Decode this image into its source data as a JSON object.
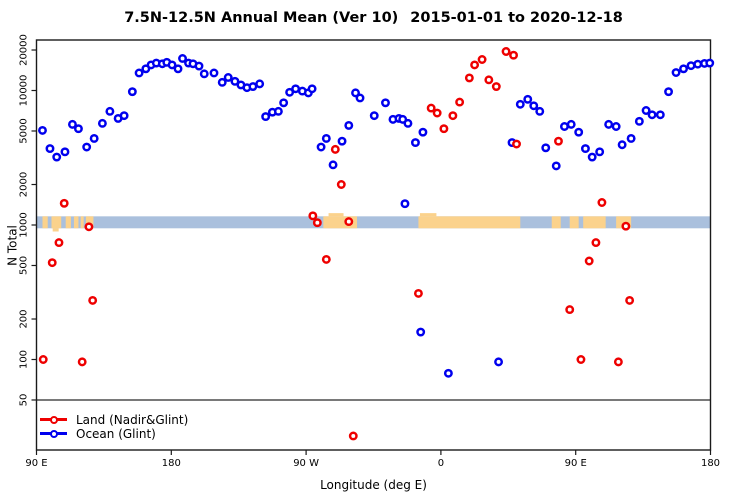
{
  "header": {
    "title_left": "7.5N-12.5N Annual Mean (Ver 10)",
    "title_right": "2015-01-01 to 2020-12-18"
  },
  "chart_data": {
    "type": "scatter",
    "title": "7.5N-12.5N Annual Mean (Ver 10)  2015-01-01 to 2020-12-18",
    "xlabel": "Longitude (deg E)",
    "ylabel": "N Total",
    "x_axis": {
      "domain": [
        90,
        540
      ],
      "note": "continuous longitude wrapping eastward: 90=90E, 180=180, 270=90W, 360=0, 450=90E, 540=180",
      "ticks": [
        {
          "lon": 90,
          "label": "90 E"
        },
        {
          "lon": 180,
          "label": "180"
        },
        {
          "lon": 270,
          "label": "90 W"
        },
        {
          "lon": 360,
          "label": "0"
        },
        {
          "lon": 450,
          "label": "90 E"
        },
        {
          "lon": 540,
          "label": "180"
        }
      ]
    },
    "y_axis": {
      "scale": "log",
      "domain": [
        20,
        25000
      ],
      "ticks": [
        50,
        100,
        200,
        500,
        1000,
        2000,
        5000,
        10000,
        20000
      ]
    },
    "grid": false,
    "reference_line": {
      "value": 50,
      "color": "#4d4d4d"
    },
    "land_ocean_band": {
      "top_value": 1160,
      "bottom_value": 945,
      "ocean_color": "#aac0dd",
      "land_color": "#fbd28c",
      "land_patches": [
        {
          "from": 94.0,
          "to": 97.5
        },
        {
          "from": 100.0,
          "to": 106.5
        },
        {
          "from": 109.5,
          "to": 113.0
        },
        {
          "from": 115.0,
          "to": 118.0
        },
        {
          "from": 119.5,
          "to": 121.5
        },
        {
          "from": 123.0,
          "to": 128.0
        },
        {
          "from": 281.5,
          "to": 304.0
        },
        {
          "from": 345.0,
          "to": 413.0
        },
        {
          "from": 434.0,
          "to": 440.0
        },
        {
          "from": 446.0,
          "to": 452.0
        },
        {
          "from": 455.0,
          "to": 470.0
        },
        {
          "from": 477.0,
          "to": 487.0
        }
      ],
      "bumps": [
        {
          "from": 100.8,
          "to": 104.8,
          "side": "below"
        },
        {
          "from": 285.0,
          "to": 295.0,
          "side": "above"
        },
        {
          "from": 346.0,
          "to": 357.0,
          "side": "above"
        }
      ]
    },
    "legend": {
      "position": "bottom-left"
    },
    "series": [
      {
        "name": "Land (Nadir&Glint)",
        "color": "#ee0000",
        "points": [
          [
            94.5,
            100
          ],
          [
            100.5,
            525
          ],
          [
            105,
            740
          ],
          [
            108.5,
            1450
          ],
          [
            120.5,
            96
          ],
          [
            125,
            970
          ],
          [
            127.5,
            275
          ],
          [
            274.5,
            1170
          ],
          [
            277.5,
            1040
          ],
          [
            283.5,
            555
          ],
          [
            289.5,
            3650
          ],
          [
            293.5,
            2000
          ],
          [
            298.5,
            1060
          ],
          [
            301.5,
            27
          ],
          [
            345,
            310
          ],
          [
            353.5,
            7400
          ],
          [
            357.5,
            6800
          ],
          [
            362,
            5200
          ],
          [
            368,
            6500
          ],
          [
            372.5,
            8200
          ],
          [
            379,
            12400
          ],
          [
            382.5,
            15500
          ],
          [
            387.5,
            17000
          ],
          [
            392,
            12000
          ],
          [
            397,
            10700
          ],
          [
            403.5,
            19500
          ],
          [
            408.5,
            18300
          ],
          [
            410.5,
            4000
          ],
          [
            438.5,
            4200
          ],
          [
            446,
            235
          ],
          [
            453.5,
            100
          ],
          [
            459,
            540
          ],
          [
            463.5,
            740
          ],
          [
            467.5,
            1470
          ],
          [
            478.5,
            96
          ],
          [
            483.5,
            980
          ],
          [
            486,
            275
          ]
        ]
      },
      {
        "name": "Ocean (Glint)",
        "color": "#0000ee",
        "points": [
          [
            94,
            5050
          ],
          [
            99,
            3700
          ],
          [
            103.5,
            3200
          ],
          [
            109,
            3500
          ],
          [
            114,
            5600
          ],
          [
            118,
            5200
          ],
          [
            123.5,
            3800
          ],
          [
            128.5,
            4400
          ],
          [
            134,
            5700
          ],
          [
            139,
            7000
          ],
          [
            144.5,
            6200
          ],
          [
            148.5,
            6500
          ],
          [
            154,
            9800
          ],
          [
            158.5,
            13500
          ],
          [
            163,
            14500
          ],
          [
            166.5,
            15500
          ],
          [
            170,
            16000
          ],
          [
            174,
            15800
          ],
          [
            177,
            16200
          ],
          [
            180.5,
            15500
          ],
          [
            184.5,
            14500
          ],
          [
            187.5,
            17300
          ],
          [
            191.5,
            16000
          ],
          [
            194.5,
            15800
          ],
          [
            198.5,
            15200
          ],
          [
            202,
            13300
          ],
          [
            208.5,
            13500
          ],
          [
            214,
            11500
          ],
          [
            218,
            12500
          ],
          [
            222.5,
            11700
          ],
          [
            226.5,
            11000
          ],
          [
            230.5,
            10500
          ],
          [
            234.5,
            10700
          ],
          [
            239,
            11200
          ],
          [
            243,
            6400
          ],
          [
            247.5,
            6900
          ],
          [
            251.5,
            7000
          ],
          [
            255,
            8100
          ],
          [
            259,
            9700
          ],
          [
            263,
            10300
          ],
          [
            267.5,
            9900
          ],
          [
            271.5,
            9600
          ],
          [
            274,
            10300
          ],
          [
            280,
            3800
          ],
          [
            283.5,
            4400
          ],
          [
            288,
            2800
          ],
          [
            294,
            4200
          ],
          [
            298.5,
            5500
          ],
          [
            303,
            9600
          ],
          [
            306,
            8800
          ],
          [
            315.5,
            6500
          ],
          [
            323,
            8100
          ],
          [
            328,
            6100
          ],
          [
            332,
            6200
          ],
          [
            334.5,
            6100
          ],
          [
            338,
            5700
          ],
          [
            343,
            4100
          ],
          [
            348,
            4900
          ],
          [
            336,
            1440
          ],
          [
            346.5,
            160
          ],
          [
            365,
            79
          ],
          [
            398.5,
            96
          ],
          [
            407.5,
            4100
          ],
          [
            413,
            7900
          ],
          [
            418,
            8600
          ],
          [
            422,
            7700
          ],
          [
            426,
            7000
          ],
          [
            430,
            3750
          ],
          [
            437,
            2750
          ],
          [
            442.5,
            5400
          ],
          [
            447,
            5600
          ],
          [
            452,
            4900
          ],
          [
            456.5,
            3700
          ],
          [
            461,
            3200
          ],
          [
            466,
            3500
          ],
          [
            472,
            5600
          ],
          [
            477,
            5400
          ],
          [
            481,
            3950
          ],
          [
            487,
            4400
          ],
          [
            492.5,
            5900
          ],
          [
            497,
            7100
          ],
          [
            501,
            6600
          ],
          [
            506.5,
            6600
          ],
          [
            512,
            9800
          ],
          [
            517,
            13600
          ],
          [
            522,
            14500
          ],
          [
            527,
            15300
          ],
          [
            531.5,
            15700
          ],
          [
            536,
            15900
          ],
          [
            539.5,
            16000
          ]
        ]
      }
    ]
  }
}
